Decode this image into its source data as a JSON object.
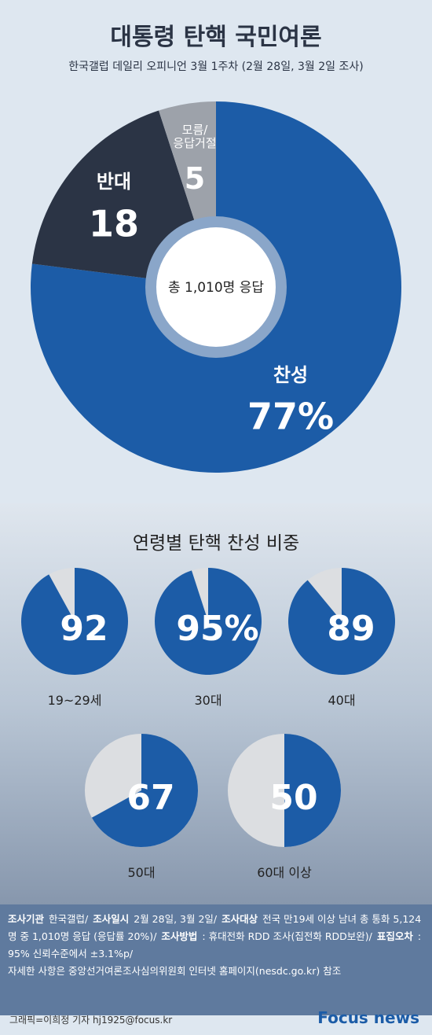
{
  "title": "대통령 탄핵 국민여론",
  "subtitle": "한국갤럽 데일리 오피니언  3월 1주차 (2월 28일, 3월 2일 조사)",
  "chart_data": [
    {
      "type": "donut",
      "center_label": "총 1,010명 응답",
      "categories": [
        "찬성",
        "반대",
        "모름/\n응답거절"
      ],
      "values": [
        77,
        18,
        5
      ],
      "value_labels": [
        "77%",
        "18",
        "5"
      ],
      "colors": [
        "#1c5ca7",
        "#2b3445",
        "#9da2aa"
      ]
    },
    {
      "type": "pie-grid",
      "title": "연령별 탄핵 찬성 비중",
      "categories": [
        "19~29세",
        "30대",
        "40대",
        "50대",
        "60대 이상"
      ],
      "values": [
        92,
        95,
        89,
        67,
        50
      ],
      "value_labels": [
        "92",
        "95%",
        "89",
        "67",
        "50"
      ],
      "color": "#1c5ca7",
      "rest_color": "#dcdee1"
    }
  ],
  "notes": [
    {
      "label": "조사기관",
      "text": "한국갤럽/"
    },
    {
      "label": "조사일시",
      "text": "2월  28일, 3월 2일/"
    },
    {
      "label": "조사대상",
      "text": "전국 만19세 이상 남녀 총 통화 5,124명 중 1,010명 응답 (응답률 20%)/"
    },
    {
      "label": "조사방법",
      "text": ": 휴대전화 RDD 조사(집전화 RDD보완)/"
    },
    {
      "label": "표집오차",
      "text": ": 95% 신뢰수준에서 ±3.1%p/"
    }
  ],
  "note_footer": "자세한 사항은 중앙선거여론조사심의위원회 인터넷 홈페이지(nesdc.go.kr) 참조",
  "credit": "그래픽=이희정 기자 hj1925@focus.kr",
  "logo": "Focus news"
}
